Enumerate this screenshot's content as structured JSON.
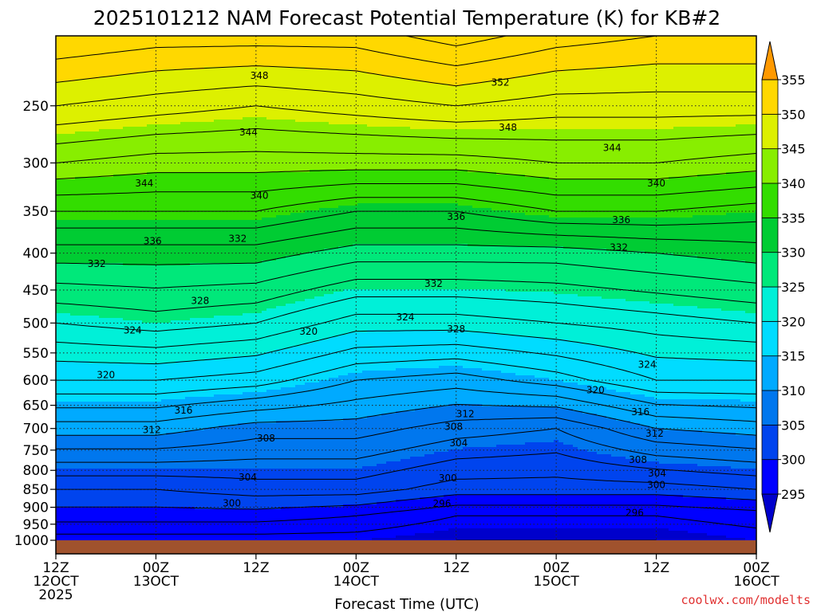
{
  "chart_data": {
    "type": "heatmap",
    "title": "2025101212 NAM Forecast Potential Temperature (K) for KB#2",
    "xlabel": "Forecast Time (UTC)",
    "ylabel": "",
    "x_ticks": [
      {
        "hour": 12,
        "label1": "12Z",
        "label2": "12OCT",
        "label3": "2025"
      },
      {
        "hour": 24,
        "label1": "00Z",
        "label2": "13OCT",
        "label3": ""
      },
      {
        "hour": 36,
        "label1": "12Z",
        "label2": "",
        "label3": ""
      },
      {
        "hour": 48,
        "label1": "00Z",
        "label2": "14OCT",
        "label3": ""
      },
      {
        "hour": 60,
        "label1": "12Z",
        "label2": "",
        "label3": ""
      },
      {
        "hour": 72,
        "label1": "00Z",
        "label2": "15OCT",
        "label3": ""
      },
      {
        "hour": 84,
        "label1": "12Z",
        "label2": "",
        "label3": ""
      },
      {
        "hour": 96,
        "label1": "00Z",
        "label2": "16OCT",
        "label3": ""
      }
    ],
    "x_range_hours": [
      12,
      96
    ],
    "y_range_pressure": [
      1000,
      200
    ],
    "y_scale": "log-pressure",
    "y_ticks": [
      250,
      300,
      350,
      400,
      450,
      500,
      550,
      600,
      650,
      700,
      750,
      800,
      850,
      900,
      950,
      1000
    ],
    "grid": true,
    "colorbar": {
      "levels": [
        295,
        300,
        305,
        310,
        315,
        320,
        325,
        330,
        335,
        340,
        345,
        350,
        355
      ],
      "colors": [
        "#0000cc",
        "#0000ff",
        "#0044ee",
        "#0077ee",
        "#00aaff",
        "#00dcff",
        "#00f0d8",
        "#00e87a",
        "#00cc33",
        "#33dd00",
        "#88ee00",
        "#ddf000",
        "#ffd800",
        "#ff9900"
      ]
    },
    "profiles": [
      {
        "hour": 12,
        "theta": {
          "1000": 295,
          "925": 299,
          "850": 302,
          "700": 311,
          "600": 318,
          "500": 324,
          "400": 331,
          "350": 336,
          "300": 342,
          "250": 348,
          "200": 354
        }
      },
      {
        "hour": 24,
        "theta": {
          "1000": 295,
          "925": 299,
          "850": 302,
          "700": 311,
          "600": 318,
          "500": 325,
          "400": 331,
          "350": 336,
          "300": 341,
          "250": 347,
          "200": 353
        }
      },
      {
        "hour": 36,
        "theta": {
          "1000": 295,
          "925": 299,
          "850": 303,
          "700": 309,
          "600": 317,
          "500": 324,
          "400": 331,
          "350": 336,
          "300": 341,
          "250": 346,
          "200": 353
        }
      },
      {
        "hour": 48,
        "theta": {
          "1000": 295,
          "925": 298,
          "850": 303,
          "700": 309,
          "600": 314,
          "500": 321,
          "400": 329,
          "350": 334,
          "300": 341,
          "250": 347,
          "200": 353
        }
      },
      {
        "hour": 60,
        "theta": {
          "1000": 294,
          "925": 296,
          "850": 301,
          "700": 307,
          "600": 313,
          "500": 321,
          "400": 329,
          "350": 334,
          "300": 341,
          "250": 348,
          "200": 355
        }
      },
      {
        "hour": 72,
        "theta": {
          "1000": 294,
          "925": 296,
          "850": 301,
          "700": 306,
          "600": 315,
          "500": 322,
          "400": 329,
          "350": 336,
          "300": 342,
          "250": 347,
          "200": 353
        }
      },
      {
        "hour": 84,
        "theta": {
          "1000": 294,
          "925": 296,
          "850": 301,
          "700": 310,
          "600": 318,
          "500": 323,
          "400": 330,
          "350": 336,
          "300": 342,
          "250": 347,
          "200": 352
        }
      },
      {
        "hour": 96,
        "theta": {
          "1000": 295,
          "925": 297,
          "850": 302,
          "700": 311,
          "600": 318,
          "500": 324,
          "400": 331,
          "350": 335,
          "300": 341,
          "250": 347,
          "200": 352
        }
      }
    ],
    "contour_labels": [
      {
        "text": "348",
        "hour": 36.4,
        "p": 227
      },
      {
        "text": "352",
        "hour": 65.3,
        "p": 232
      },
      {
        "text": "348",
        "hour": 66.2,
        "p": 268
      },
      {
        "text": "344",
        "hour": 35.1,
        "p": 272
      },
      {
        "text": "344",
        "hour": 78.7,
        "p": 286
      },
      {
        "text": "344",
        "hour": 22.6,
        "p": 320
      },
      {
        "text": "340",
        "hour": 84.0,
        "p": 320
      },
      {
        "text": "340",
        "hour": 36.4,
        "p": 333
      },
      {
        "text": "336",
        "hour": 60.0,
        "p": 356
      },
      {
        "text": "336",
        "hour": 79.8,
        "p": 360
      },
      {
        "text": "336",
        "hour": 23.6,
        "p": 385
      },
      {
        "text": "332",
        "hour": 33.8,
        "p": 382
      },
      {
        "text": "332",
        "hour": 79.5,
        "p": 393
      },
      {
        "text": "332",
        "hour": 16.9,
        "p": 414
      },
      {
        "text": "332",
        "hour": 57.3,
        "p": 441
      },
      {
        "text": "328",
        "hour": 29.3,
        "p": 466
      },
      {
        "text": "324",
        "hour": 53.9,
        "p": 491
      },
      {
        "text": "324",
        "hour": 21.2,
        "p": 512
      },
      {
        "text": "328",
        "hour": 60.0,
        "p": 510
      },
      {
        "text": "320",
        "hour": 42.3,
        "p": 514
      },
      {
        "text": "324",
        "hour": 82.9,
        "p": 571
      },
      {
        "text": "320",
        "hour": 18.0,
        "p": 590
      },
      {
        "text": "320",
        "hour": 76.7,
        "p": 619
      },
      {
        "text": "316",
        "hour": 27.3,
        "p": 661
      },
      {
        "text": "312",
        "hour": 61.1,
        "p": 668
      },
      {
        "text": "316",
        "hour": 82.1,
        "p": 664
      },
      {
        "text": "312",
        "hour": 23.5,
        "p": 703
      },
      {
        "text": "308",
        "hour": 59.7,
        "p": 696
      },
      {
        "text": "312",
        "hour": 83.8,
        "p": 711
      },
      {
        "text": "308",
        "hour": 37.2,
        "p": 722
      },
      {
        "text": "304",
        "hour": 60.3,
        "p": 733
      },
      {
        "text": "308",
        "hour": 81.8,
        "p": 774
      },
      {
        "text": "304",
        "hour": 35.0,
        "p": 818
      },
      {
        "text": "300",
        "hour": 59.0,
        "p": 820
      },
      {
        "text": "304",
        "hour": 84.1,
        "p": 808
      },
      {
        "text": "300",
        "hour": 84.0,
        "p": 838
      },
      {
        "text": "300",
        "hour": 33.1,
        "p": 889
      },
      {
        "text": "296",
        "hour": 58.3,
        "p": 890
      },
      {
        "text": "296",
        "hour": 81.4,
        "p": 916
      }
    ]
  },
  "footer": {
    "credit": "coolwx.com/modelts"
  }
}
